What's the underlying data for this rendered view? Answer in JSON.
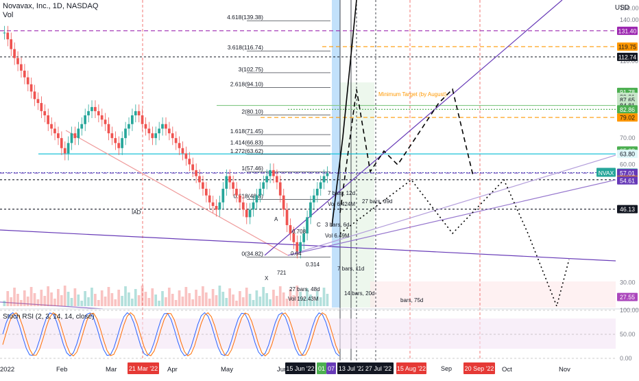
{
  "header": {
    "symbol_line": "Novavax, Inc., 1D, NASDAQ",
    "volume_label": "Vol",
    "currency": "USD",
    "oscillator_label": "Stoch RSI (2, 3, 14, 14, close)"
  },
  "colors": {
    "candle_up": "#26a69a",
    "candle_down": "#ef5350",
    "purple_dash": "#9c27b0",
    "orange_dash": "#ff9800",
    "trend_purple": "#673ab7",
    "teal_line": "#00bcd4",
    "projection": "#000000"
  },
  "chart_data": {
    "type": "candlestick",
    "y_scale": "log",
    "ylim": [
      25,
      150
    ],
    "y_tick_labels": [
      "150.00",
      "140.00",
      "110.00",
      "70.00",
      "60.00",
      "30.00"
    ],
    "x_tick_labels": [
      "2022",
      "Feb",
      "Mar",
      "Apr",
      "May",
      "Jun",
      "Oct",
      "Nov"
    ],
    "x_date_highlights": [
      {
        "label": "21 Mar '22",
        "color": "#e53935"
      },
      {
        "label": "15 Jun '22",
        "color": "#131722"
      },
      {
        "label": "01",
        "color": "#4caf50"
      },
      {
        "label": "07",
        "color": "#673ab7"
      },
      {
        "label": "13 Jul '22",
        "color": "#131722"
      },
      {
        "label": "27 Jul '22",
        "color": "#131722"
      },
      {
        "label": "15 Aug '22",
        "color": "#e53935"
      },
      {
        "label": "Sep",
        "color": "#ffffff"
      },
      {
        "label": "20 Sep '22",
        "color": "#e53935"
      }
    ],
    "price_labels": [
      {
        "value": "131.40",
        "bg": "#9c27b0",
        "fg": "#ffffff",
        "price": 131.4
      },
      {
        "value": "119.75",
        "bg": "#ff9800",
        "fg": "#131722",
        "price": 119.75
      },
      {
        "value": "112.74",
        "bg": "#131722",
        "fg": "#ffffff",
        "price": 112.74
      },
      {
        "value": "91.78",
        "bg": "#4caf50",
        "fg": "#ffffff",
        "price": 91.78
      },
      {
        "value": "89.21",
        "bg": "#c8e6c9",
        "fg": "#131722",
        "price": 89.21
      },
      {
        "value": "87.65",
        "bg": "#c8e6c9",
        "fg": "#131722",
        "price": 87.65
      },
      {
        "value": "84.81",
        "bg": "#c8e6c9",
        "fg": "#131722",
        "price": 84.81
      },
      {
        "value": "82.86",
        "bg": "#4caf50",
        "fg": "#ffffff",
        "price": 82.86
      },
      {
        "value": "79.02",
        "bg": "#ff9800",
        "fg": "#131722",
        "price": 79.02
      },
      {
        "value": "65.08",
        "bg": "#4caf50",
        "fg": "#ffffff",
        "price": 65.08
      },
      {
        "value": "63.80",
        "bg": "#e0f7fa",
        "fg": "#131722",
        "price": 63.8
      },
      {
        "value": "57.15",
        "bg": "#26a69a",
        "fg": "#ffffff",
        "price": 57.15
      },
      {
        "value": "57.01",
        "bg": "#673ab7",
        "fg": "#ffffff",
        "price": 57.01
      },
      {
        "value": "54.82",
        "bg": "#ff9800",
        "fg": "#131722",
        "price": 54.82
      },
      {
        "value": "54.61",
        "bg": "#673ab7",
        "fg": "#ffffff",
        "price": 54.61
      },
      {
        "value": "46.13",
        "bg": "#131722",
        "fg": "#ffffff",
        "price": 46.13
      },
      {
        "value": "27.55",
        "bg": "#ab47bc",
        "fg": "#ffffff",
        "price": 27.55
      }
    ],
    "ticker_badge": "NVAX",
    "fib_levels": [
      {
        "label": "4.618(139.38)",
        "price": 139.38
      },
      {
        "label": "3.618(116.74)",
        "price": 116.74
      },
      {
        "label": "3(102.75)",
        "price": 102.75
      },
      {
        "label": "2.618(94.10)",
        "price": 94.1
      },
      {
        "label": "2(80.10)",
        "price": 80.1
      },
      {
        "label": "1.618(71.45)",
        "price": 71.45
      },
      {
        "label": "1.414(66.83)",
        "price": 66.83
      },
      {
        "label": "1.272(63.62)",
        "price": 63.62
      },
      {
        "label": "1(57.46)",
        "price": 57.46
      },
      {
        "label": "0.618(48.8)",
        "price": 48.8
      },
      {
        "label": "0(34.82)",
        "price": 34.82
      }
    ],
    "annotations": [
      "Minimum Target (by August)",
      "7 bars, 12d",
      "Vol 6.424M",
      "27 bars, 39d",
      "3 bars, 6d",
      "Vol 6.49M",
      "7 bars, 11d",
      "27 bars, 48d",
      "Vol 192.43M",
      "14 bars, 20d",
      "bars, 75d",
      "0.708",
      "0.64",
      "0.314",
      "721",
      "A",
      "C",
      "X",
      "IAD"
    ],
    "oscillator": {
      "name": "Stoch RSI",
      "ylim": [
        0,
        100
      ],
      "tick_labels": [
        "100.00",
        "50.00",
        "0.00"
      ]
    },
    "close": [
      130,
      125,
      118,
      112,
      108,
      104,
      100,
      96,
      92,
      88,
      86,
      82,
      80,
      76,
      74,
      72,
      70,
      66,
      64,
      68,
      72,
      70,
      74,
      76,
      80,
      82,
      84,
      82,
      80,
      78,
      76,
      72,
      70,
      68,
      66,
      70,
      74,
      76,
      80,
      82,
      80,
      76,
      74,
      72,
      70,
      72,
      74,
      76,
      74,
      72,
      70,
      68,
      66,
      64,
      62,
      60,
      58,
      56,
      54,
      52,
      50,
      48,
      47,
      46,
      48,
      52,
      56,
      54,
      52,
      50,
      48,
      46,
      44,
      46,
      48,
      50,
      52,
      54,
      56,
      58,
      56,
      54,
      50,
      46,
      42,
      40,
      38,
      36,
      38,
      40,
      44,
      48,
      50,
      52,
      54,
      56,
      57
    ]
  }
}
